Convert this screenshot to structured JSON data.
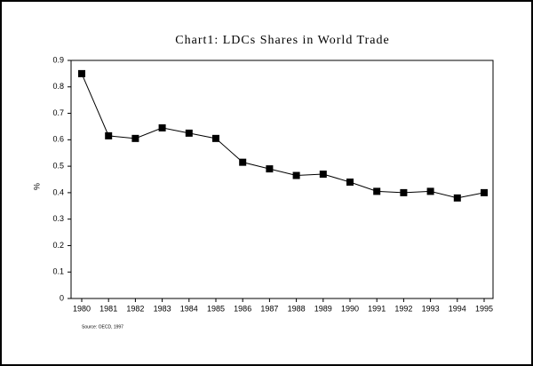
{
  "chart_data": {
    "type": "line",
    "title": "Chart1: LDCs Shares in World Trade",
    "y_label": "%",
    "source": "Source: OECD, 1997",
    "categories": [
      "1980",
      "1981",
      "1982",
      "1983",
      "1984",
      "1985",
      "1986",
      "1987",
      "1988",
      "1989",
      "1990",
      "1991",
      "1992",
      "1993",
      "1994",
      "1995"
    ],
    "values": [
      0.85,
      0.615,
      0.605,
      0.645,
      0.625,
      0.605,
      0.515,
      0.49,
      0.465,
      0.47,
      0.44,
      0.405,
      0.4,
      0.405,
      0.38,
      0.4
    ],
    "color": "#000000",
    "ylim": [
      0,
      0.9
    ],
    "yticks": [
      0,
      0.1,
      0.2,
      0.3,
      0.4,
      0.5,
      0.6,
      0.7,
      0.8,
      0.9
    ],
    "grid": false
  }
}
